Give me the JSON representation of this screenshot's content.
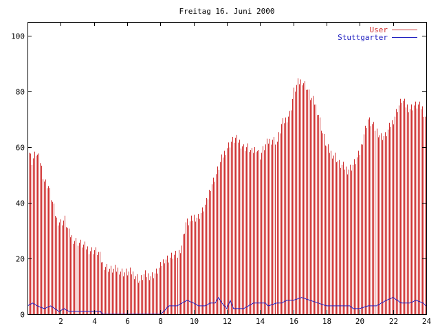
{
  "chart_data": {
    "type": "bar",
    "title": "Freitag 16. Juni 2000",
    "xlabel": "",
    "ylabel": "",
    "xlim": [
      0,
      24
    ],
    "ylim": [
      0,
      105
    ],
    "grid": false,
    "legend_position": "top-right",
    "x_ticks": [
      2,
      4,
      6,
      8,
      10,
      12,
      14,
      16,
      18,
      20,
      22,
      24
    ],
    "y_ticks": [
      0,
      20,
      40,
      60,
      80,
      100
    ],
    "series": [
      {
        "name": "User",
        "style": "impulses",
        "color": "#d03030",
        "points": [
          [
            0,
            60
          ],
          [
            0.25,
            55
          ],
          [
            0.5,
            58
          ],
          [
            0.75,
            55
          ],
          [
            1,
            48
          ],
          [
            1.25,
            46
          ],
          [
            1.5,
            40
          ],
          [
            1.75,
            34
          ],
          [
            2,
            33
          ],
          [
            2.25,
            34
          ],
          [
            2.5,
            29
          ],
          [
            2.75,
            27
          ],
          [
            3,
            26
          ],
          [
            3.25,
            25
          ],
          [
            3.5,
            24
          ],
          [
            3.75,
            23
          ],
          [
            4,
            23
          ],
          [
            4.25,
            22
          ],
          [
            4.5,
            18
          ],
          [
            4.75,
            17
          ],
          [
            5,
            16
          ],
          [
            5.25,
            16
          ],
          [
            5.5,
            16
          ],
          [
            5.75,
            15
          ],
          [
            6,
            15
          ],
          [
            6.25,
            15
          ],
          [
            6.5,
            14
          ],
          [
            6.75,
            12
          ],
          [
            7,
            14
          ],
          [
            7.25,
            14
          ],
          [
            7.5,
            14
          ],
          [
            7.75,
            15
          ],
          [
            8,
            17
          ],
          [
            8.25,
            20
          ],
          [
            8.5,
            20
          ],
          [
            8.75,
            21
          ],
          [
            9,
            21
          ],
          [
            9.25,
            25
          ],
          [
            9.5,
            33
          ],
          [
            9.75,
            33
          ],
          [
            10,
            35
          ],
          [
            10.25,
            35
          ],
          [
            10.5,
            37
          ],
          [
            10.75,
            40
          ],
          [
            11,
            46
          ],
          [
            11.25,
            49
          ],
          [
            11.5,
            53
          ],
          [
            11.75,
            57
          ],
          [
            12,
            60
          ],
          [
            12.25,
            62
          ],
          [
            12.5,
            63
          ],
          [
            12.75,
            62
          ],
          [
            13,
            60
          ],
          [
            13.25,
            60
          ],
          [
            13.5,
            58
          ],
          [
            13.75,
            60
          ],
          [
            14,
            57
          ],
          [
            14.25,
            60
          ],
          [
            14.5,
            62
          ],
          [
            14.75,
            63
          ],
          [
            15,
            62
          ],
          [
            15.25,
            68
          ],
          [
            15.5,
            70
          ],
          [
            15.75,
            72
          ],
          [
            16,
            80
          ],
          [
            16.25,
            83
          ],
          [
            16.5,
            84
          ],
          [
            16.75,
            82
          ],
          [
            17,
            78
          ],
          [
            17.25,
            76
          ],
          [
            17.5,
            72
          ],
          [
            17.75,
            65
          ],
          [
            18,
            60
          ],
          [
            18.25,
            58
          ],
          [
            18.5,
            57
          ],
          [
            18.75,
            54
          ],
          [
            19,
            53
          ],
          [
            19.25,
            52
          ],
          [
            19.5,
            53
          ],
          [
            19.75,
            55
          ],
          [
            20,
            58
          ],
          [
            20.25,
            65
          ],
          [
            20.5,
            70
          ],
          [
            20.75,
            68
          ],
          [
            21,
            66
          ],
          [
            21.25,
            64
          ],
          [
            21.5,
            64
          ],
          [
            21.75,
            67
          ],
          [
            22,
            70
          ],
          [
            22.25,
            74
          ],
          [
            22.5,
            77
          ],
          [
            22.75,
            75
          ],
          [
            23,
            74
          ],
          [
            23.25,
            75
          ],
          [
            23.5,
            75
          ],
          [
            23.75,
            74
          ],
          [
            24,
            70
          ]
        ]
      },
      {
        "name": "Stuttgarter",
        "style": "lines",
        "color": "#2020c0",
        "points": [
          [
            0,
            3
          ],
          [
            0.3,
            4
          ],
          [
            0.6,
            3
          ],
          [
            1,
            2
          ],
          [
            1.4,
            3
          ],
          [
            1.9,
            1
          ],
          [
            2.2,
            2
          ],
          [
            2.5,
            1
          ],
          [
            4.4,
            1
          ],
          [
            4.5,
            0
          ],
          [
            8,
            0
          ],
          [
            8.2,
            1
          ],
          [
            8.5,
            3
          ],
          [
            9,
            3
          ],
          [
            9.3,
            4
          ],
          [
            9.6,
            5
          ],
          [
            10,
            4
          ],
          [
            10.3,
            3
          ],
          [
            10.7,
            3
          ],
          [
            11,
            4
          ],
          [
            11.3,
            4
          ],
          [
            11.5,
            6
          ],
          [
            11.7,
            4
          ],
          [
            12,
            2
          ],
          [
            12.2,
            5
          ],
          [
            12.4,
            2
          ],
          [
            13,
            2
          ],
          [
            13.3,
            3
          ],
          [
            13.6,
            4
          ],
          [
            14,
            4
          ],
          [
            14.3,
            4
          ],
          [
            14.5,
            3
          ],
          [
            15,
            4
          ],
          [
            15.3,
            4
          ],
          [
            15.6,
            5
          ],
          [
            16,
            5
          ],
          [
            16.5,
            6
          ],
          [
            17,
            5
          ],
          [
            17.5,
            4
          ],
          [
            18,
            3
          ],
          [
            19,
            3
          ],
          [
            19.4,
            3
          ],
          [
            19.6,
            2
          ],
          [
            20,
            2
          ],
          [
            20.5,
            3
          ],
          [
            21,
            3
          ],
          [
            21.3,
            4
          ],
          [
            21.6,
            5
          ],
          [
            22,
            6
          ],
          [
            22.5,
            4
          ],
          [
            23,
            4
          ],
          [
            23.4,
            5
          ],
          [
            23.8,
            4
          ],
          [
            24,
            3
          ]
        ]
      }
    ]
  }
}
